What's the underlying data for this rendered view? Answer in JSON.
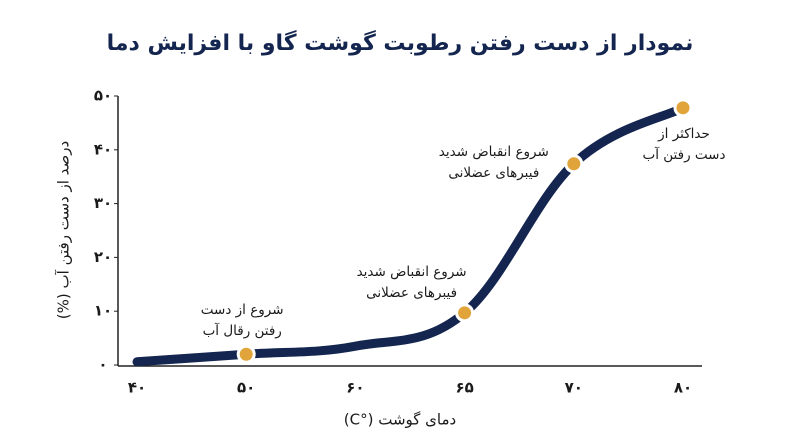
{
  "chart_data": {
    "type": "line",
    "title": "نمودار از دست رفتن رطوبت گوشت گاو با افزایش دما",
    "x_label": "دمای گوشت (°C)",
    "y_label": "درصد از دست رفتن آب (%)",
    "categories": [
      "۴۰",
      "۵۰",
      "۶۰",
      "۶۵",
      "۷۰",
      "۸۰"
    ],
    "series": [
      {
        "color": "#14254f",
        "marker_color": "#e0a43a",
        "values": [
          0.6,
          2,
          3.5,
          9.7,
          37.4,
          47.8
        ]
      }
    ],
    "ylim": [
      0,
      50
    ],
    "yticks": [
      {
        "value": 0,
        "label": "۰"
      },
      {
        "value": 10,
        "label": "۱۰"
      },
      {
        "value": 20,
        "label": "۲۰"
      },
      {
        "value": 30,
        "label": "۳۰"
      },
      {
        "value": 40,
        "label": "۴۰"
      },
      {
        "value": 50,
        "label": "۵۰"
      }
    ],
    "annotations": [
      {
        "point": 1,
        "lines": [
          "شروع از دست",
          "رفتن رقال آب"
        ]
      },
      {
        "point": 3,
        "lines": [
          "شروع انقباض شدید",
          "فیبرهای عضلانی"
        ]
      },
      {
        "point": 4,
        "lines": [
          "شروع انقباض شدید",
          "فیبرهای عضلانی"
        ]
      },
      {
        "point": 5,
        "lines": [
          "حداکثر از",
          "دست رفتن آب"
        ]
      }
    ]
  }
}
